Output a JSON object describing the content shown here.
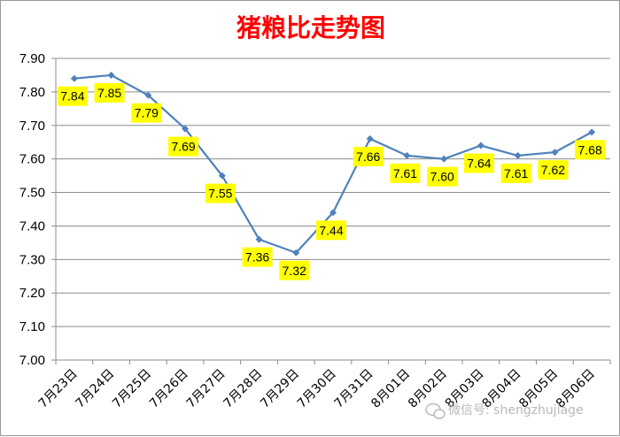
{
  "chart_data": {
    "type": "line",
    "title": "猪粮比走势图",
    "xlabel": "",
    "ylabel": "",
    "categories": [
      "7月23日",
      "7月24日",
      "7月25日",
      "7月26日",
      "7月27日",
      "7月28日",
      "7月29日",
      "7月30日",
      "7月31日",
      "8月01日",
      "8月02日",
      "8月03日",
      "8月04日",
      "8月05日",
      "8月06日"
    ],
    "series": [
      {
        "values": [
          7.84,
          7.85,
          7.79,
          7.69,
          7.55,
          7.36,
          7.32,
          7.44,
          7.66,
          7.61,
          7.6,
          7.64,
          7.61,
          7.62,
          7.68
        ]
      }
    ],
    "data_labels": [
      "7.84",
      "7.85",
      "7.79",
      "7.69",
      "7.55",
      "7.36",
      "7.32",
      "7.44",
      "7.66",
      "7.61",
      "7.60",
      "7.64",
      "7.61",
      "7.62",
      "7.68"
    ],
    "y_ticks": [
      "7.00",
      "7.10",
      "7.20",
      "7.30",
      "7.40",
      "7.50",
      "7.60",
      "7.70",
      "7.80",
      "7.90"
    ],
    "ylim": [
      7.0,
      7.9
    ],
    "grid": true,
    "legend": "none",
    "line_color": "#4f81bd",
    "label_background": "#ffff00"
  },
  "watermark": "微信号: shengzhujiage"
}
